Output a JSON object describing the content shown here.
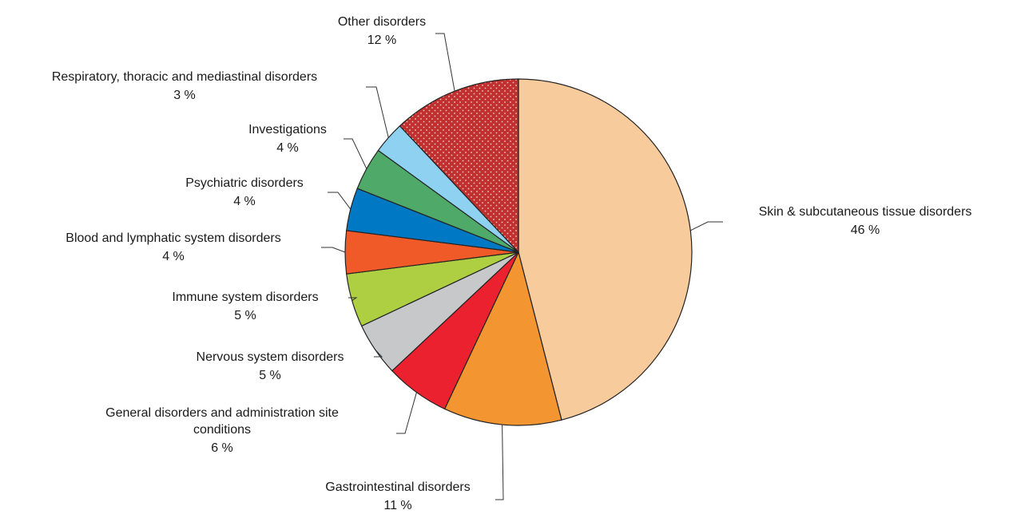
{
  "chart_data": {
    "type": "pie",
    "title": "",
    "unit": "%",
    "slices": [
      {
        "label": "Skin & subcutaneous tissue disorders",
        "value": 46,
        "value_label": "46 %",
        "color": "#f8cb9c"
      },
      {
        "label": "Gastrointestinal disorders",
        "value": 11,
        "value_label": "11 %",
        "color": "#f39530"
      },
      {
        "label": "General disorders and administration site conditions",
        "value": 6,
        "value_label": "6 %",
        "color": "#ec2130"
      },
      {
        "label": "Nervous system disorders",
        "value": 5,
        "value_label": "5 %",
        "color": "#c6c8ca"
      },
      {
        "label": "Immune system disorders",
        "value": 5,
        "value_label": "5 %",
        "color": "#aecf42"
      },
      {
        "label": "Blood and lymphatic system disorders",
        "value": 4,
        "value_label": "4 %",
        "color": "#f05a28"
      },
      {
        "label": "Psychiatric disorders",
        "value": 4,
        "value_label": "4 %",
        "color": "#0078c3"
      },
      {
        "label": "Investigations",
        "value": 4,
        "value_label": "4 %",
        "color": "#4faa6a"
      },
      {
        "label": "Respiratory, thoracic and mediastinal disorders",
        "value": 3,
        "value_label": "3 %",
        "color": "#8fd1f0"
      },
      {
        "label": "Other disorders",
        "value": 12,
        "value_label": "12 %",
        "color": "#c0302f",
        "pattern": "dotted"
      }
    ]
  }
}
